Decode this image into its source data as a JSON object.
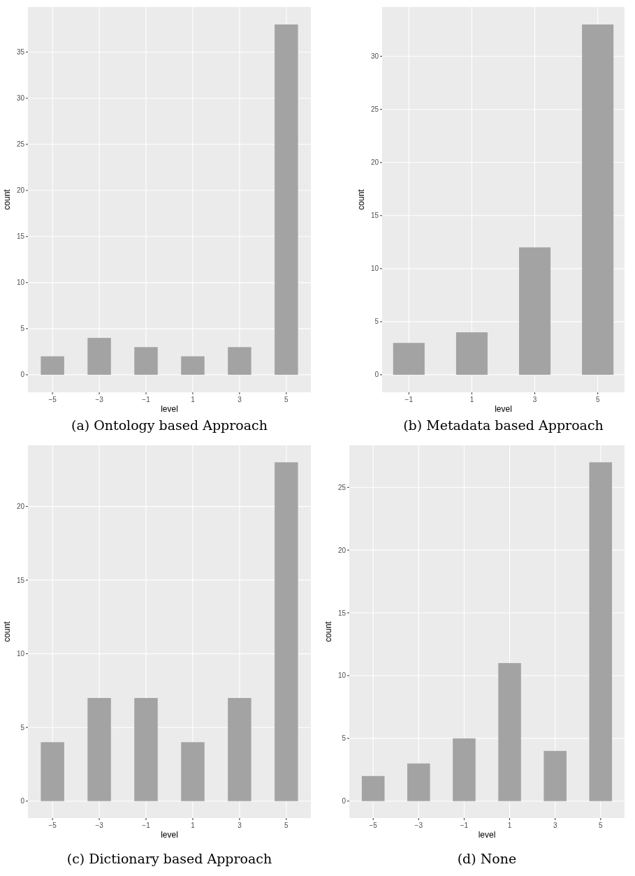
{
  "chart_data": [
    {
      "type": "histogram",
      "title": "(a) Ontology based Approach",
      "xlabel": "level",
      "ylabel": "count",
      "bins": [
        -5.5,
        -4.5,
        -3.5,
        -2.5,
        -1.5,
        -0.5,
        0.5,
        1.5,
        2.5,
        3.5,
        4.5,
        5.5
      ],
      "values": [
        2,
        0,
        4,
        0,
        3,
        0,
        2,
        0,
        3,
        0,
        38
      ],
      "color": "#a3a3a3",
      "xlim": [
        -6.05,
        6.05
      ],
      "xticks": [
        {
          "value": -5,
          "label": "−5"
        },
        {
          "value": -3,
          "label": "−3"
        },
        {
          "value": -1,
          "label": "−1"
        },
        1,
        3,
        5
      ],
      "ylim": [
        -1.9,
        39.9
      ],
      "yticks": [
        0,
        5,
        10,
        15,
        20,
        25,
        30,
        35
      ],
      "grid": true
    },
    {
      "type": "histogram",
      "title": "(b) Metadata based Approach",
      "xlabel": "level",
      "ylabel": "count",
      "bins": [
        -1.5,
        -0.5,
        0.5,
        1.5,
        2.5,
        3.5,
        4.5,
        5.5
      ],
      "values": [
        3,
        0,
        4,
        0,
        12,
        0,
        33
      ],
      "color": "#a3a3a3",
      "xlim": [
        -1.85,
        5.85
      ],
      "xticks": [
        {
          "value": -1,
          "label": "−1"
        },
        1,
        3,
        5
      ],
      "ylim": [
        -1.65,
        34.65
      ],
      "yticks": [
        0,
        5,
        10,
        15,
        20,
        25,
        30
      ],
      "grid": true
    },
    {
      "type": "histogram",
      "title": "(c) Dictionary based Approach",
      "xlabel": "level",
      "ylabel": "count",
      "bins": [
        -5.5,
        -4.5,
        -3.5,
        -2.5,
        -1.5,
        -0.5,
        0.5,
        1.5,
        2.5,
        3.5,
        4.5,
        5.5
      ],
      "values": [
        4,
        0,
        7,
        0,
        7,
        0,
        4,
        0,
        7,
        0,
        23
      ],
      "color": "#a3a3a3",
      "xlim": [
        -6.05,
        6.05
      ],
      "xticks": [
        {
          "value": -5,
          "label": "−5"
        },
        {
          "value": -3,
          "label": "−3"
        },
        {
          "value": -1,
          "label": "−1"
        },
        1,
        3,
        5
      ],
      "ylim": [
        -1.15,
        24.15
      ],
      "yticks": [
        0,
        5,
        10,
        15,
        20
      ],
      "grid": true
    },
    {
      "type": "histogram",
      "title": "(d) None",
      "xlabel": "level",
      "ylabel": "count",
      "bins": [
        -5.5,
        -4.5,
        -3.5,
        -2.5,
        -1.5,
        -0.5,
        0.5,
        1.5,
        2.5,
        3.5,
        4.5,
        5.5
      ],
      "values": [
        2,
        0,
        3,
        0,
        5,
        0,
        11,
        0,
        4,
        0,
        27
      ],
      "color": "#a3a3a3",
      "xlim": [
        -6.05,
        6.05
      ],
      "xticks": [
        {
          "value": -5,
          "label": "−5"
        },
        {
          "value": -3,
          "label": "−3"
        },
        {
          "value": -1,
          "label": "−1"
        },
        1,
        3,
        5
      ],
      "ylim": [
        -1.35,
        28.35
      ],
      "yticks": [
        0,
        5,
        10,
        15,
        20,
        25
      ],
      "grid": true
    }
  ]
}
